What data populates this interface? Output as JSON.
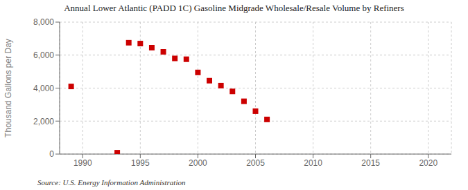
{
  "chart_data": {
    "type": "scatter",
    "title": "Annual Lower Atlantic (PADD 1C) Gasoline Midgrade Wholesale/Resale Volume by Refiners",
    "ylabel": "Thousand Gallons per Day",
    "annotation": "Source: U.S. Energy Information Administration",
    "x": [
      1989,
      1993,
      1994,
      1995,
      1996,
      1997,
      1998,
      1999,
      2000,
      2001,
      2002,
      2003,
      2004,
      2005,
      2006
    ],
    "values": [
      4100,
      80,
      6750,
      6700,
      6450,
      6200,
      5800,
      5750,
      4950,
      4450,
      4150,
      3800,
      3200,
      2600,
      2100
    ],
    "color": "#cc0000",
    "marker": "square",
    "xlim": [
      1988,
      2022
    ],
    "xticks": [
      1990,
      1995,
      2000,
      2005,
      2010,
      2015,
      2020
    ],
    "ylim": [
      0,
      8000
    ],
    "yticks": [
      0,
      {
        "value": 2000,
        "label": "2,000"
      },
      {
        "value": 4000,
        "label": "4,000"
      },
      {
        "value": 6000,
        "label": "6,000"
      },
      {
        "value": 8000,
        "label": "8,000"
      }
    ],
    "grid": true
  }
}
